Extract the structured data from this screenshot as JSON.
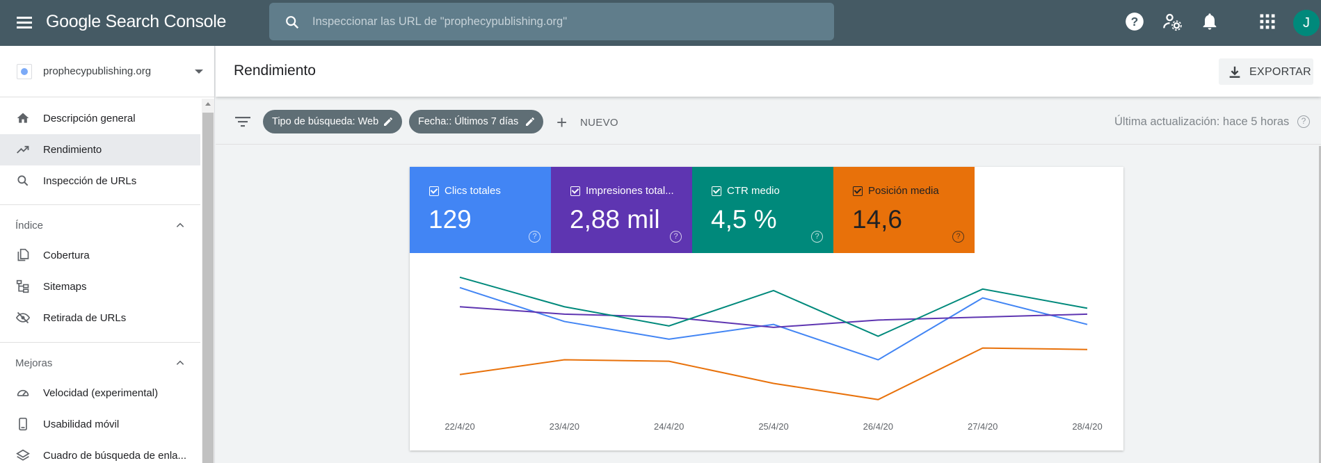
{
  "app": {
    "brand": "Google Search Console",
    "search_placeholder": "Inspeccionar las URL de \"prophecypublishing.org\"",
    "avatar_letter": "J"
  },
  "sidebar": {
    "property": "prophecypublishing.org",
    "items": [
      {
        "label": "Descripción general",
        "icon": "home-icon"
      },
      {
        "label": "Rendimiento",
        "icon": "trending-up-icon",
        "active": true
      },
      {
        "label": "Inspección de URLs",
        "icon": "search-icon"
      }
    ],
    "index_section": {
      "title": "Índice",
      "items": [
        {
          "label": "Cobertura",
          "icon": "file-copy-icon"
        },
        {
          "label": "Sitemaps",
          "icon": "sitemap-icon"
        },
        {
          "label": "Retirada de URLs",
          "icon": "eye-off-icon"
        }
      ]
    },
    "improvements_section": {
      "title": "Mejoras",
      "items": [
        {
          "label": "Velocidad (experimental)",
          "icon": "speed-icon"
        },
        {
          "label": "Usabilidad móvil",
          "icon": "phone-icon"
        },
        {
          "label": "Cuadro de búsqueda de enla...",
          "icon": "layers-icon"
        }
      ]
    }
  },
  "header": {
    "title": "Rendimiento",
    "export_label": "EXPORTAR"
  },
  "filters": {
    "chips": [
      {
        "label": "Tipo de búsqueda: Web"
      },
      {
        "label": "Fecha:: Últimos 7 días"
      }
    ],
    "new_label": "NUEVO",
    "last_updated": "Última actualización: hace 5 horas"
  },
  "metrics": [
    {
      "name": "Clics totales",
      "value": "129",
      "bg": "#4285f4",
      "fg": "#ffffff"
    },
    {
      "name": "Impresiones total...",
      "value": "2,88 mil",
      "bg": "#5e35b1",
      "fg": "#ffffff"
    },
    {
      "name": "CTR medio",
      "value": "4,5 %",
      "bg": "#00897b",
      "fg": "#ffffff"
    },
    {
      "name": "Posición media",
      "value": "14,6",
      "bg": "#e8710a",
      "fg": "#202124"
    }
  ],
  "chart_data": {
    "type": "line",
    "x": [
      "22/4/20",
      "23/4/20",
      "24/4/20",
      "25/4/20",
      "26/4/20",
      "27/4/20",
      "28/4/20"
    ],
    "y_scale": "independent per series (axes hidden)",
    "grid": false,
    "series": [
      {
        "name": "Clics totales",
        "color": "#4285f4",
        "values": [
          0.86,
          0.63,
          0.51,
          0.61,
          0.37,
          0.79,
          0.61
        ]
      },
      {
        "name": "Impresiones total...",
        "color": "#5e35b1",
        "values": [
          0.73,
          0.68,
          0.66,
          0.59,
          0.64,
          0.66,
          0.68
        ]
      },
      {
        "name": "CTR medio",
        "color": "#00897b",
        "values": [
          0.93,
          0.73,
          0.6,
          0.84,
          0.53,
          0.85,
          0.72
        ]
      },
      {
        "name": "Posición media",
        "color": "#e8710a",
        "values": [
          0.27,
          0.37,
          0.36,
          0.21,
          0.1,
          0.45,
          0.44
        ]
      }
    ]
  }
}
